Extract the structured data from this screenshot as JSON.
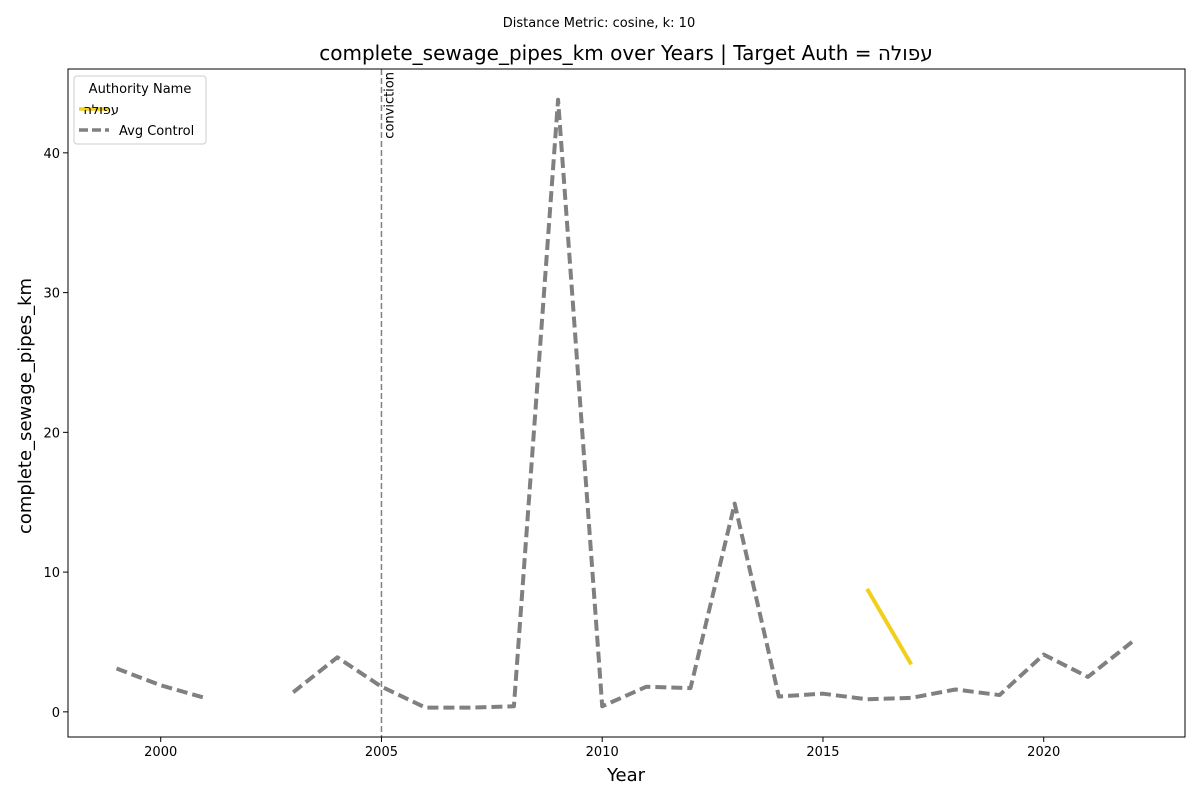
{
  "suptitle": "Distance Metric: cosine, k: 10",
  "chart_data": {
    "type": "line",
    "title": "complete_sewage_pipes_km over Years | Target Auth = עפולה",
    "xlabel": "Year",
    "ylabel": "complete_sewage_pipes_km",
    "xlim": [
      1997.9,
      2023.2
    ],
    "ylim": [
      -1.8,
      46
    ],
    "xticks": [
      2000,
      2005,
      2010,
      2015,
      2020
    ],
    "yticks": [
      0,
      10,
      20,
      30,
      40
    ],
    "grid": false,
    "legend": {
      "title": "Authority Name",
      "placement": "top-left"
    },
    "vline": {
      "x": 2005,
      "label": "conviction",
      "color": "#808080",
      "style": "dashed"
    },
    "series": [
      {
        "name": "עפולה",
        "color": "#f2cf1d",
        "style": "solid",
        "x": [
          2016,
          2017
        ],
        "y": [
          8.8,
          3.4
        ]
      },
      {
        "name": "Avg Control",
        "color": "#808080",
        "style": "dashed",
        "x": [
          1999,
          2000,
          2001,
          2002,
          2003,
          2004,
          2005,
          2006,
          2007,
          2008,
          2009,
          2010,
          2011,
          2012,
          2013,
          2014,
          2015,
          2016,
          2017,
          2018,
          2019,
          2020,
          2021,
          2022
        ],
        "y": [
          3.1,
          1.9,
          1.0,
          null,
          1.4,
          3.9,
          1.8,
          0.3,
          0.3,
          0.4,
          43.8,
          0.4,
          1.8,
          1.7,
          14.9,
          1.1,
          1.3,
          0.9,
          1.0,
          1.6,
          1.2,
          4.1,
          2.5,
          5.0
        ]
      }
    ]
  }
}
